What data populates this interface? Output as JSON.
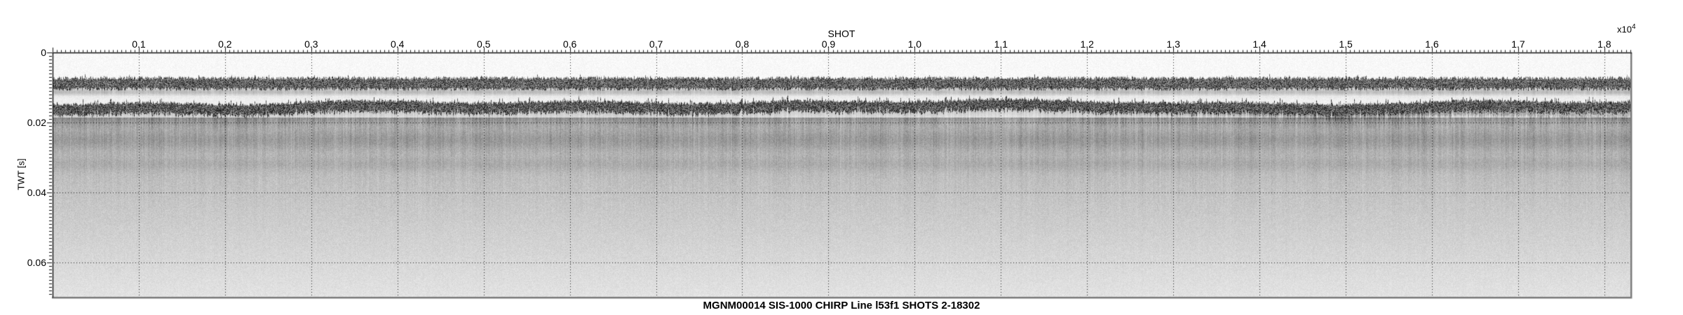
{
  "figure": {
    "caption": "MGNM00014 SIS-1000 CHIRP Line l53f1 SHOTS 2-18302"
  },
  "chart_data": {
    "type": "heatmap",
    "subtype": "seismic-chirp-profile",
    "title": "MGNM00014 SIS-1000 CHIRP Line l53f1 SHOTS 2-18302",
    "xlabel": "SHOT",
    "ylabel": "TWT [s]",
    "x_multiplier": {
      "base": "x10",
      "exponent": "4"
    },
    "colormap": "grayscale",
    "grid": {
      "style": "dotted",
      "on": true
    },
    "x_axis": {
      "min": 0,
      "max": 1.8302,
      "units": "shots x10^4",
      "tick_values": [
        0.1,
        0.2,
        0.3,
        0.4,
        0.5,
        0.6,
        0.7,
        0.8,
        0.9,
        1.0,
        1.1,
        1.2,
        1.3,
        1.4,
        1.5,
        1.6,
        1.7,
        1.8
      ],
      "tick_labels": [
        "0.1",
        "0.2",
        "0.3",
        "0.4",
        "0.5",
        "0.6",
        "0.7",
        "0.8",
        "0.9",
        "1.0",
        "1.1",
        "1.2",
        "1.3",
        "1.4",
        "1.5",
        "1.6",
        "1.7",
        "1.8"
      ],
      "minor_step": 0.005
    },
    "y_axis": {
      "min": 0,
      "max": 0.0698,
      "units": "s",
      "tick_values": [
        0,
        0.02,
        0.04,
        0.06
      ],
      "tick_labels": [
        "0",
        "0.02",
        "0.04",
        "0.06"
      ],
      "minor_step": 0.001
    },
    "shot_range": [
      2,
      18302
    ],
    "reflectors": [
      {
        "name": "direct-arrival-band",
        "twt_top": 0.0074,
        "twt_bottom": 0.0101,
        "peak_darkness": 0.88
      },
      {
        "name": "ghost-band",
        "twt_top": 0.0104,
        "twt_bottom": 0.0122,
        "peak_darkness": 0.17
      },
      {
        "name": "seafloor-band",
        "twt_top": 0.0145,
        "twt_bottom": 0.0168,
        "peak_darkness": 0.92
      },
      {
        "name": "sub-bottom-diffuse-band-1",
        "twt_top": 0.022,
        "twt_bottom": 0.028,
        "peak_darkness": 0.1
      },
      {
        "name": "sub-bottom-diffuse-band-2",
        "twt_top": 0.0296,
        "twt_bottom": 0.034,
        "peak_darkness": 0.06
      }
    ],
    "background": {
      "water_darkness": 0.012,
      "deep_start_twt": 0.0185,
      "deep_top_darkness": 0.3,
      "deep_bottom_darkness": 0.085
    },
    "colors": {
      "text": "#000000",
      "frame_dark": "#111111",
      "frame_gray": "#7a7a7a",
      "grid": "#000000",
      "background": "#ffffff"
    }
  }
}
